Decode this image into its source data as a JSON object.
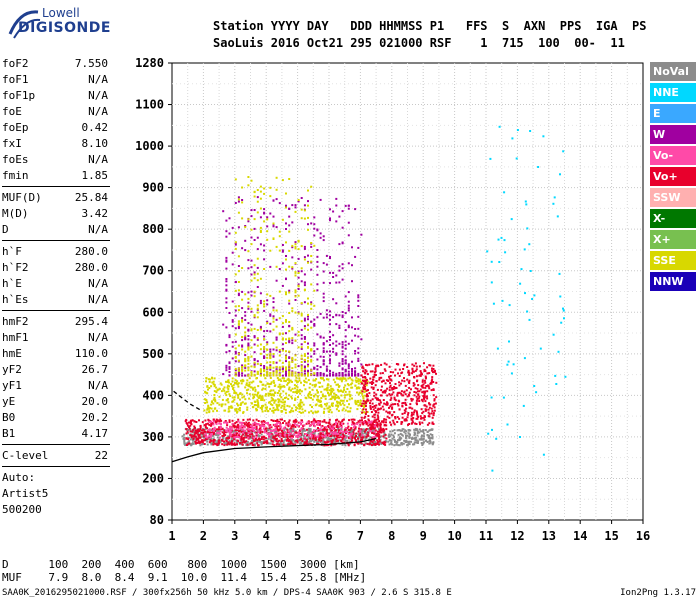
{
  "logo": {
    "top": "Lowell",
    "main": "DIGISONDE"
  },
  "header": {
    "line1": "Station YYYY DAY   DDD HHMMSS P1   FFS  S  AXN  PPS  IGA  PS",
    "line2": "SaoLuis 2016 Oct21 295 021000 RSF    1  715  100  00-  11"
  },
  "params": [
    [
      {
        "label": "foF2",
        "value": "7.550"
      },
      {
        "label": "foF1",
        "value": "N/A"
      },
      {
        "label": "foF1p",
        "value": "N/A"
      },
      {
        "label": "foE",
        "value": "N/A"
      },
      {
        "label": "foEp",
        "value": "0.42"
      },
      {
        "label": "fxI",
        "value": "8.10"
      },
      {
        "label": "foEs",
        "value": "N/A"
      },
      {
        "label": "fmin",
        "value": "1.85"
      }
    ],
    [
      {
        "label": "MUF(D)",
        "value": "25.84"
      },
      {
        "label": "M(D)",
        "value": "3.42"
      },
      {
        "label": "D",
        "value": "N/A"
      }
    ],
    [
      {
        "label": "h`F",
        "value": "280.0"
      },
      {
        "label": "h`F2",
        "value": "280.0"
      },
      {
        "label": "h`E",
        "value": "N/A"
      },
      {
        "label": "h`Es",
        "value": "N/A"
      }
    ],
    [
      {
        "label": "hmF2",
        "value": "295.4"
      },
      {
        "label": "hmF1",
        "value": "N/A"
      },
      {
        "label": "hmE",
        "value": "110.0"
      },
      {
        "label": "yF2",
        "value": "26.7"
      },
      {
        "label": "yF1",
        "value": "N/A"
      },
      {
        "label": "yE",
        "value": "20.0"
      },
      {
        "label": "B0",
        "value": "20.2"
      },
      {
        "label": "B1",
        "value": "4.17"
      }
    ],
    [
      {
        "label": "C-level",
        "value": "22"
      }
    ]
  ],
  "autoscale": [
    "Auto:",
    "Artist5",
    "500200"
  ],
  "legend": [
    {
      "label": "NoVal",
      "color": "#8c8c8c"
    },
    {
      "label": "NNE",
      "color": "#00d8ff"
    },
    {
      "label": "E",
      "color": "#3aa8ff"
    },
    {
      "label": "W",
      "color": "#a000a0"
    },
    {
      "label": "Vo-",
      "color": "#ff4aa8"
    },
    {
      "label": "Vo+",
      "color": "#e8002c"
    },
    {
      "label": "SSW",
      "color": "#ffb0b0"
    },
    {
      "label": "X-",
      "color": "#007800"
    },
    {
      "label": "X+",
      "color": "#78c050"
    },
    {
      "label": "SSE",
      "color": "#d8d800"
    },
    {
      "label": "NNW",
      "color": "#1a00b8"
    }
  ],
  "chart_data": {
    "type": "scatter",
    "title": "",
    "xlabel": "",
    "ylabel": "",
    "x_ticks": [
      "1",
      "2",
      "3",
      "4",
      "5",
      "6",
      "7",
      "8",
      "9",
      "10",
      "11",
      "12",
      "13",
      "14",
      "15",
      "16"
    ],
    "y_ticks": [
      "80",
      "200",
      "300",
      "400",
      "500",
      "600",
      "700",
      "800",
      "900",
      "1000",
      "1100",
      "1280"
    ],
    "xlim": [
      1,
      16
    ],
    "ylim": [
      80,
      1280
    ],
    "y_tick_values": [
      80,
      200,
      300,
      400,
      500,
      600,
      700,
      800,
      900,
      1000,
      1100,
      1280
    ],
    "grid": true,
    "profile_curve": [
      [
        1,
        240
      ],
      [
        1.5,
        252
      ],
      [
        2,
        262
      ],
      [
        3,
        272
      ],
      [
        4,
        276
      ],
      [
        5,
        279
      ],
      [
        6,
        282
      ],
      [
        7,
        288
      ],
      [
        7.5,
        296
      ]
    ],
    "dashed_curve": [
      [
        1.05,
        410
      ],
      [
        1.3,
        395
      ],
      [
        1.6,
        378
      ],
      [
        1.9,
        365
      ]
    ],
    "echo_clusters": [
      {
        "name": "NoVal",
        "x": [
          1.3,
          9.3
        ],
        "y": [
          282,
          322
        ]
      },
      {
        "name": "Vo+",
        "x": [
          1.4,
          7.8
        ],
        "y": [
          282,
          345
        ]
      },
      {
        "name": "Vo-",
        "x": [
          2.0,
          7.5
        ],
        "y": [
          300,
          340
        ]
      },
      {
        "name": "SSE",
        "x": [
          2.0,
          7.2
        ],
        "y": [
          360,
          445
        ]
      },
      {
        "name": "W",
        "x": [
          2.6,
          7.0
        ],
        "y": [
          450,
          880
        ]
      },
      {
        "name": "SSE",
        "x": [
          3.0,
          5.5
        ],
        "y": [
          450,
          930
        ]
      },
      {
        "name": "Vo+",
        "x": [
          7.0,
          9.4
        ],
        "y": [
          330,
          480
        ]
      },
      {
        "name": "NNE",
        "x": [
          11.0,
          13.5
        ],
        "y": [
          220,
          1060
        ]
      }
    ]
  },
  "plasma_freq": {
    "d_row": [
      "D",
      "100",
      "200",
      "400",
      "600",
      "800",
      "1000",
      "1500",
      "3000",
      "[km]"
    ],
    "muf_row": [
      "MUF",
      "7.9",
      "8.0",
      "8.4",
      "9.1",
      "10.0",
      "11.4",
      "15.4",
      "25.8",
      "[MHz]"
    ]
  },
  "footer_line": "SAA0K_2016295021000.RSF / 300fx256h 50 kHz 5.0 km / DPS-4 SAA0K 903 / 2.6 S 315.8 E",
  "version": "Ion2Png 1.3.17"
}
